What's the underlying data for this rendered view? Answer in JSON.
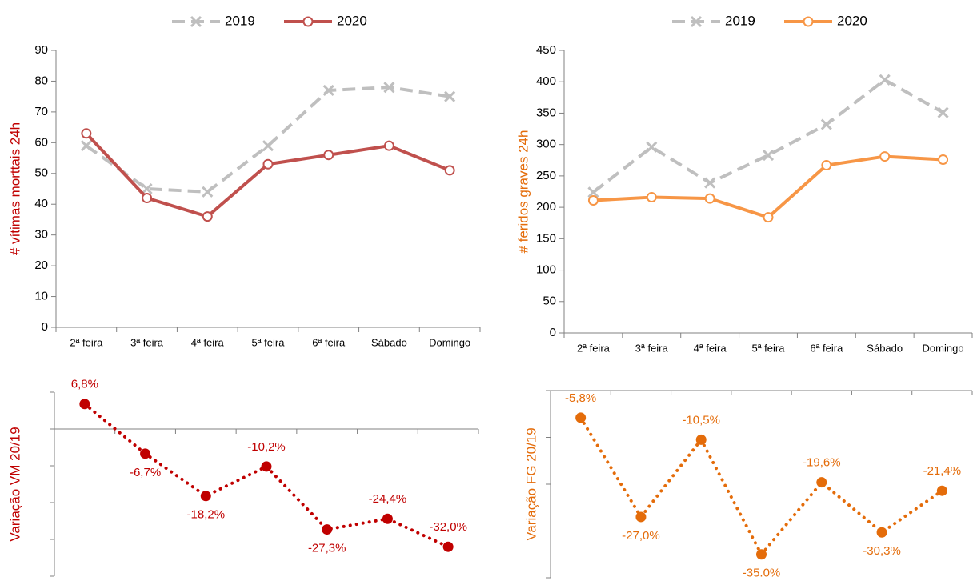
{
  "chart_data": [
    {
      "type": "line",
      "y_label": "# vítimas morttais 24h",
      "categories": [
        "2ª feira",
        "3ª feira",
        "4ª feira",
        "5ª feira",
        "6ª feira",
        "Sábado",
        "Domingo"
      ],
      "series": [
        {
          "name": "2019",
          "color": "#bfbfbf",
          "values": [
            59,
            45,
            44,
            59,
            77,
            78,
            75
          ]
        },
        {
          "name": "2020",
          "color": "#c0504d",
          "values": [
            63,
            42,
            36,
            53,
            56,
            59,
            51
          ]
        }
      ],
      "ylim": [
        0,
        90
      ],
      "yticks": [
        0,
        10,
        20,
        30,
        40,
        50,
        60,
        70,
        80,
        90
      ],
      "label_color": "#c00000",
      "legend": "top"
    },
    {
      "type": "line",
      "y_label": "# feridos graves 24h",
      "categories": [
        "2ª feira",
        "3ª feira",
        "4ª feira",
        "5ª feira",
        "6ª feira",
        "Sábado",
        "Domingo"
      ],
      "series": [
        {
          "name": "2019",
          "color": "#bfbfbf",
          "values": [
            224,
            296,
            239,
            283,
            332,
            403,
            351
          ]
        },
        {
          "name": "2020",
          "color": "#f79646",
          "values": [
            211,
            216,
            214,
            184,
            267,
            281,
            276
          ]
        }
      ],
      "ylim": [
        0,
        450
      ],
      "yticks": [
        0,
        50,
        100,
        150,
        200,
        250,
        300,
        350,
        400,
        450
      ],
      "label_color": "#e46c0a",
      "legend": "top"
    },
    {
      "type": "dotline",
      "y_label": "Variação VM 20/19",
      "color": "#c00000",
      "values": [
        6.8,
        -6.7,
        -18.2,
        -10.2,
        -27.3,
        -24.4,
        -32.0
      ],
      "value_labels": [
        "6,8%",
        "-6,7%",
        "-18,2%",
        "-10,2%",
        "-27,3%",
        "-24,4%",
        "-32,0%"
      ],
      "ylim": [
        -40,
        10
      ],
      "yticks": [
        -40,
        -30,
        -20,
        -10,
        0,
        10
      ],
      "label_color": "#c00000"
    },
    {
      "type": "dotline",
      "y_label": "Variação FG 20/19",
      "color": "#e46c0a",
      "values": [
        -5.8,
        -27.0,
        -10.5,
        -35.0,
        -19.6,
        -30.3,
        -21.4
      ],
      "value_labels": [
        "-5,8%",
        "-27,0%",
        "-10,5%",
        "-35.0%",
        "-19,6%",
        "-30,3%",
        "-21,4%"
      ],
      "ylim": [
        -40,
        0
      ],
      "yticks": [
        -40,
        -30,
        -20,
        -10,
        0
      ],
      "label_color": "#e46c0a"
    }
  ]
}
